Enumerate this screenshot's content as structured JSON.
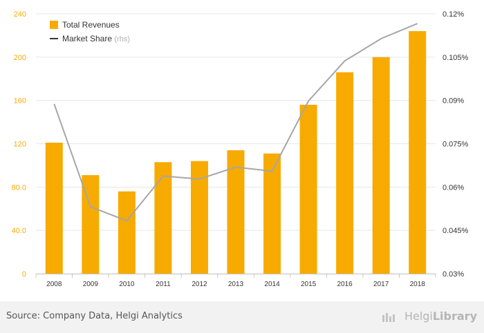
{
  "chart_data": {
    "type": "bar",
    "categories": [
      "2008",
      "2009",
      "2010",
      "2011",
      "2012",
      "2013",
      "2014",
      "2015",
      "2016",
      "2017",
      "2018"
    ],
    "series": [
      {
        "name": "Total Revenues",
        "type": "bar",
        "axis": "left",
        "values": [
          121,
          91,
          76,
          103,
          104,
          114,
          111,
          156,
          186,
          200,
          224
        ]
      },
      {
        "name": "Market Share",
        "type": "line",
        "axis": "right",
        "values": [
          0.0888,
          0.0532,
          0.0483,
          0.0638,
          0.0628,
          0.0669,
          0.0655,
          0.0898,
          0.1037,
          0.1114,
          0.1166
        ]
      }
    ],
    "ylim_left": [
      0,
      240
    ],
    "yticks_left": [
      "0",
      "40.0",
      "80.0",
      "120",
      "160",
      "200",
      "240"
    ],
    "ylim_right": [
      0.03,
      0.12
    ],
    "yticks_right": [
      "0.03%",
      "0.045%",
      "0.06%",
      "0.075%",
      "0.09%",
      "0.105%",
      "0.12%"
    ],
    "legend": {
      "revenues": "Total Revenues",
      "share": "Market Share",
      "share_suffix": "(rhs)",
      "position": "top-left"
    },
    "grid": "horizontal",
    "colors": {
      "bars": "#f7ab00",
      "line": "#a6a6a6",
      "legend_line": "#333333"
    }
  },
  "footer": {
    "source": "Source: Company Data, Helgi Analytics",
    "brand_light": "Helgi",
    "brand_bold": "Library"
  }
}
